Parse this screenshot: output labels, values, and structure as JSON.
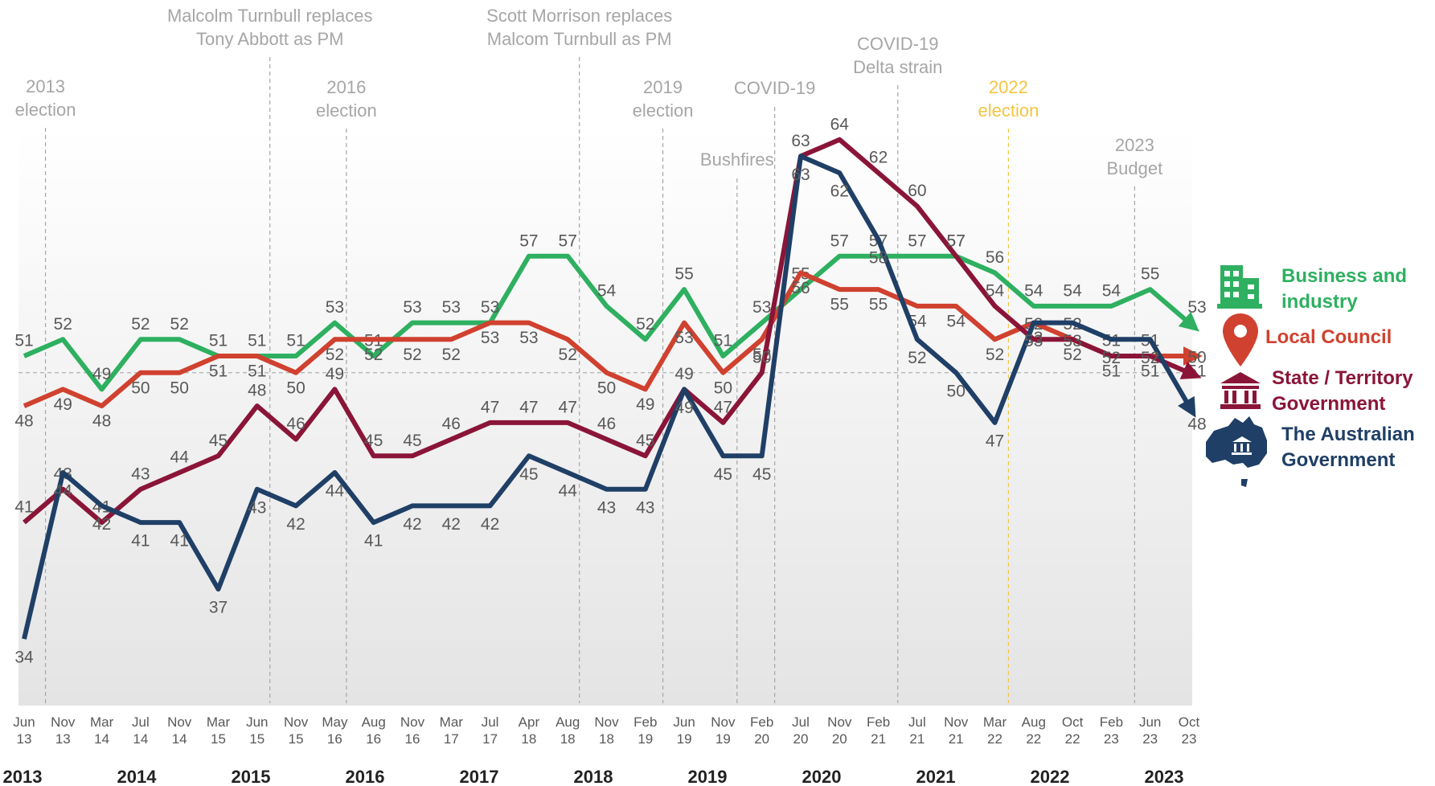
{
  "chart_data": {
    "type": "line",
    "categories": [
      "Jun 13",
      "Nov 13",
      "Mar 14",
      "Jul 14",
      "Nov 14",
      "Mar 15",
      "Jun 15",
      "Nov 15",
      "May 16",
      "Aug 16",
      "Nov 16",
      "Mar 17",
      "Jul 17",
      "Apr 18",
      "Aug 18",
      "Nov 18",
      "Feb 19",
      "Jun 19",
      "Nov 19",
      "Feb 20",
      "Jul 20",
      "Nov 20",
      "Feb 21",
      "Jul 21",
      "Nov 21",
      "Mar 22",
      "Aug 22",
      "Oct 22",
      "Feb 23",
      "Jun 23",
      "Oct 23"
    ],
    "years": [
      "2013",
      "2014",
      "2015",
      "2016",
      "2017",
      "2018",
      "2019",
      "2020",
      "2021",
      "2022",
      "2023"
    ],
    "series": [
      {
        "name": "Business and industry",
        "color": "#2eb060",
        "values": [
          51,
          52,
          49,
          52,
          52,
          51,
          51,
          51,
          53,
          51,
          53,
          53,
          53,
          57,
          57,
          54,
          52,
          55,
          51,
          53,
          55,
          57,
          57,
          57,
          57,
          56,
          54,
          54,
          54,
          55,
          53
        ]
      },
      {
        "name": "Local Council",
        "color": "#d0412f",
        "values": [
          48,
          49,
          48,
          50,
          50,
          51,
          51,
          50,
          52,
          52,
          52,
          52,
          53,
          53,
          52,
          50,
          49,
          53,
          50,
          52,
          56,
          55,
          55,
          54,
          54,
          52,
          53,
          52,
          51,
          51,
          51
        ]
      },
      {
        "name": "State / Territory Government",
        "color": "#8a1538",
        "values": [
          41,
          43,
          41,
          43,
          44,
          45,
          48,
          46,
          49,
          45,
          45,
          46,
          47,
          47,
          47,
          46,
          45,
          49,
          47,
          50,
          63,
          64,
          62,
          60,
          57,
          54,
          52,
          52,
          51,
          51,
          50
        ]
      },
      {
        "name": "The Australian Government",
        "color": "#1f3f66",
        "values": [
          34,
          44,
          42,
          41,
          41,
          37,
          43,
          42,
          44,
          41,
          42,
          42,
          42,
          45,
          44,
          43,
          43,
          49,
          45,
          45,
          63,
          62,
          58,
          52,
          50,
          47,
          53,
          53,
          52,
          52,
          48
        ]
      }
    ],
    "ylim": [
      30,
      65
    ],
    "reference_line": 50,
    "annotations": [
      {
        "lines": [
          "2013",
          "election"
        ],
        "at": 0.55,
        "color": "#a6a6a6"
      },
      {
        "lines": [
          "Malcolm Turnbull replaces",
          "Tony Abbott as PM"
        ],
        "at": 6.33,
        "color": "#a6a6a6"
      },
      {
        "lines": [
          "2016",
          "election"
        ],
        "at": 8.3,
        "color": "#a6a6a6"
      },
      {
        "lines": [
          "Scott Morrison replaces",
          "Malcom Turnbull as PM"
        ],
        "at": 14.3,
        "color": "#a6a6a6"
      },
      {
        "lines": [
          "2019",
          "election"
        ],
        "at": 16.45,
        "color": "#a6a6a6"
      },
      {
        "lines": [
          "Bushfires"
        ],
        "at": 18.36,
        "color": "#a6a6a6"
      },
      {
        "lines": [
          "COVID-19"
        ],
        "at": 19.33,
        "color": "#a6a6a6"
      },
      {
        "lines": [
          "COVID-19",
          "Delta strain"
        ],
        "at": 22.5,
        "color": "#a6a6a6"
      },
      {
        "lines": [
          "2022",
          "election"
        ],
        "at": 25.35,
        "color": "#f4c542"
      },
      {
        "lines": [
          "2023",
          "Budget"
        ],
        "at": 28.6,
        "color": "#a6a6a6"
      }
    ]
  }
}
